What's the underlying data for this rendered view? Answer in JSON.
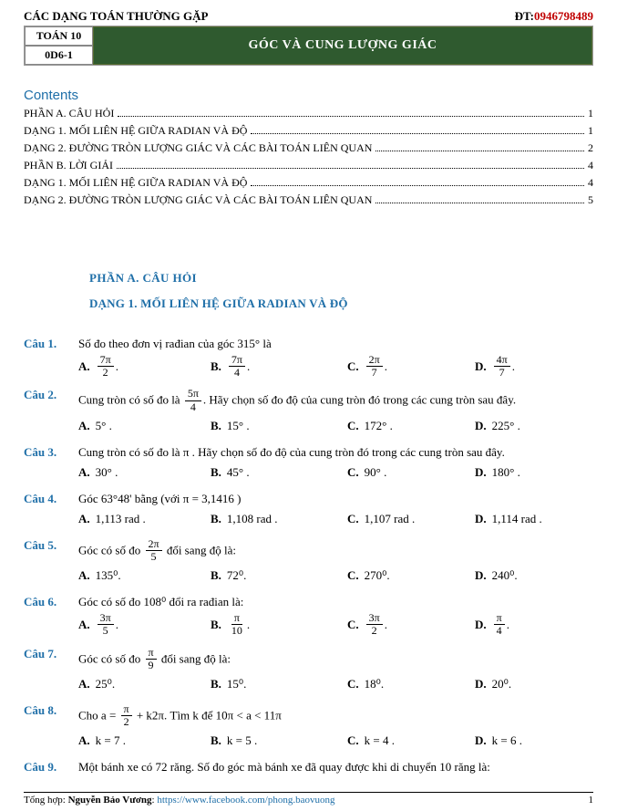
{
  "header": {
    "title_left": "CÁC DẠNG TOÁN THƯỜNG GẶP",
    "phone_prefix": "ĐT:",
    "phone": "0946798489"
  },
  "banner": {
    "cell1": "TOÁN 10",
    "cell2": "0D6-1",
    "title": "GÓC VÀ CUNG LƯỢNG GIÁC"
  },
  "contents_title": "Contents",
  "toc": [
    {
      "label": "PHẦN A. CÂU HỎI",
      "page": "1"
    },
    {
      "label": "DẠNG 1. MỐI LIÊN HỆ GIỮA RADIAN VÀ ĐỘ",
      "page": "1"
    },
    {
      "label": "DẠNG 2. ĐƯỜNG TRÒN LƯỢNG GIÁC VÀ CÁC BÀI TOÁN LIÊN QUAN",
      "page": "2"
    },
    {
      "label": "PHẦN B. LỜI GIẢI",
      "page": "4"
    },
    {
      "label": "DẠNG 1. MỐI LIÊN HỆ GIỮA RADIAN VÀ ĐỘ",
      "page": "4"
    },
    {
      "label": "DẠNG 2. ĐƯỜNG TRÒN LƯỢNG GIÁC VÀ CÁC BÀI TOÁN LIÊN QUAN",
      "page": "5"
    }
  ],
  "section_a": "PHẦN A. CÂU HỎI",
  "section_b": "DẠNG 1. MỐI LIÊN HỆ GIỮA RADIAN VÀ ĐỘ",
  "q1": {
    "num": "Câu 1.",
    "text_prefix": "Số đo theo đơn vị rađian của góc ",
    "text_mid": "315°",
    "text_suffix": " là",
    "a_num": "7π",
    "a_den": "2",
    "b_num": "7π",
    "b_den": "4",
    "c_num": "2π",
    "c_den": "7",
    "d_num": "4π",
    "d_den": "7",
    "period": "."
  },
  "q2": {
    "num": "Câu 2.",
    "text_prefix": "Cung tròn có số đo là ",
    "f_num": "5π",
    "f_den": "4",
    "text_suffix": ". Hãy chọn số đo độ của cung tròn đó trong các cung tròn sau đây.",
    "a": "5° .",
    "b": "15° .",
    "c": "172° .",
    "d": "225° ."
  },
  "q3": {
    "num": "Câu 3.",
    "text": "Cung tròn có số đo là π . Hãy chọn số đo độ của cung tròn đó trong các cung tròn sau đây.",
    "a": "30° .",
    "b": "45° .",
    "c": "90° .",
    "d": "180° ."
  },
  "q4": {
    "num": "Câu 4.",
    "text": "Góc 63°48' bằng (với π = 3,1416 )",
    "a": "1,113 rad .",
    "b": "1,108 rad .",
    "c": "1,107 rad .",
    "d": "1,114 rad ."
  },
  "q5": {
    "num": "Câu 5.",
    "text_prefix": "Góc có số đo ",
    "f_num": "2π",
    "f_den": "5",
    "text_suffix": " đổi sang độ là:",
    "a": "135⁰.",
    "b": "72⁰.",
    "c": "270⁰.",
    "d": "240⁰."
  },
  "q6": {
    "num": "Câu 6.",
    "text": "Góc có số đo 108⁰ đổi ra rađian là:",
    "a_num": "3π",
    "a_den": "5",
    "b_num": "π",
    "b_den": "10",
    "c_num": "3π",
    "c_den": "2",
    "d_num": "π",
    "d_den": "4",
    "period": "."
  },
  "q7": {
    "num": "Câu 7.",
    "text_prefix": "Góc có số đo ",
    "f_num": "π",
    "f_den": "9",
    "text_suffix": " đổi sang độ là:",
    "a": "25⁰.",
    "b": "15⁰.",
    "c": "18⁰.",
    "d": "20⁰."
  },
  "q8": {
    "num": "Câu 8.",
    "text_prefix": "Cho ",
    "eq_lhs": "a = ",
    "f_num": "π",
    "f_den": "2",
    "eq_rhs": " + k2π",
    "text_mid": ". Tìm k để 10π < a < 11π",
    "a": "k  =  7 .",
    "b": "k  =  5 .",
    "c": "k  =  4 .",
    "d": "k  =  6 ."
  },
  "q9": {
    "num": "Câu 9.",
    "text": "Một bánh xe có 72 răng. Số đo góc mà bánh xe đã quay được khi di chuyển 10 răng là:"
  },
  "labels": {
    "A": "A.",
    "B": "B.",
    "C": "C.",
    "D": "D."
  },
  "footer": {
    "prefix": "Tổng hợp: ",
    "author": "Nguyễn Bảo Vương",
    "sep": ": ",
    "link": "https://www.facebook.com/phong.baovuong",
    "page": "1"
  }
}
